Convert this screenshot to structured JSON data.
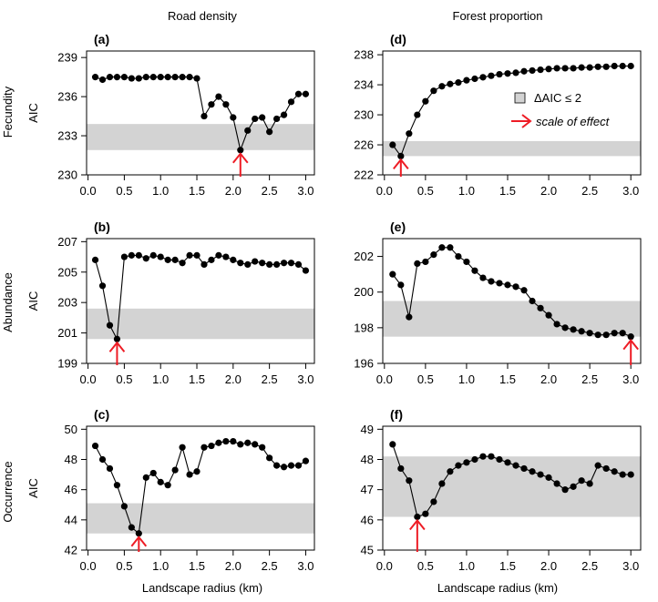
{
  "figure": {
    "column_titles": [
      "Road density",
      "Forest proportion"
    ],
    "row_labels": [
      "Fecundity",
      "Abundance",
      "Occurrence"
    ],
    "xlabel": "Landscape radius (km)"
  },
  "legend": {
    "band_label": "ΔAIC ≤ 2",
    "arrow_label": "scale of effect"
  },
  "colors": {
    "band": "#d3d3d3",
    "arrow": "#ee1c25",
    "points": "#000000"
  },
  "chart_data": [
    {
      "panel": "(a)",
      "type": "line",
      "ylabel": "AIC",
      "xlim": [
        0.1,
        3.0
      ],
      "ylim": [
        230,
        239.5
      ],
      "xticks": [
        "0.0",
        "0.5",
        "1.0",
        "1.5",
        "2.0",
        "2.5",
        "3.0"
      ],
      "yticks": [
        "230",
        "233",
        "236",
        "239"
      ],
      "x": [
        0.1,
        0.2,
        0.3,
        0.4,
        0.5,
        0.6,
        0.7,
        0.8,
        0.9,
        1.0,
        1.1,
        1.2,
        1.3,
        1.4,
        1.5,
        1.6,
        1.7,
        1.8,
        1.9,
        2.0,
        2.1,
        2.2,
        2.3,
        2.4,
        2.5,
        2.6,
        2.7,
        2.8,
        2.9,
        3.0
      ],
      "y": [
        237.5,
        237.3,
        237.5,
        237.5,
        237.5,
        237.4,
        237.4,
        237.5,
        237.5,
        237.5,
        237.5,
        237.5,
        237.5,
        237.5,
        237.4,
        234.5,
        235.4,
        236.0,
        235.4,
        234.4,
        231.9,
        233.4,
        234.3,
        234.4,
        233.3,
        234.3,
        234.6,
        235.6,
        236.2,
        236.2
      ],
      "band": [
        231.9,
        233.9
      ],
      "arrow_x": 2.1
    },
    {
      "panel": "(d)",
      "type": "line",
      "ylabel": "",
      "xlim": [
        0.1,
        3.0
      ],
      "ylim": [
        222,
        238.5
      ],
      "xticks": [
        "0.0",
        "0.5",
        "1.0",
        "1.5",
        "2.0",
        "2.5",
        "3.0"
      ],
      "yticks": [
        "222",
        "226",
        "230",
        "234",
        "238"
      ],
      "x": [
        0.1,
        0.2,
        0.3,
        0.4,
        0.5,
        0.6,
        0.7,
        0.8,
        0.9,
        1.0,
        1.1,
        1.2,
        1.3,
        1.4,
        1.5,
        1.6,
        1.7,
        1.8,
        1.9,
        2.0,
        2.1,
        2.2,
        2.3,
        2.4,
        2.5,
        2.6,
        2.7,
        2.8,
        2.9,
        3.0
      ],
      "y": [
        226.0,
        224.5,
        227.5,
        230.0,
        231.8,
        233.2,
        233.8,
        234.1,
        234.3,
        234.6,
        234.8,
        235.0,
        235.2,
        235.4,
        235.5,
        235.6,
        235.8,
        235.9,
        236.0,
        236.1,
        236.2,
        236.2,
        236.2,
        236.3,
        236.3,
        236.4,
        236.4,
        236.5,
        236.5,
        236.5
      ],
      "band": [
        224.5,
        226.5
      ],
      "arrow_x": 0.2,
      "legend": true
    },
    {
      "panel": "(b)",
      "type": "line",
      "ylabel": "AIC",
      "xlim": [
        0.1,
        3.0
      ],
      "ylim": [
        199,
        207.2
      ],
      "xticks": [
        "0.0",
        "0.5",
        "1.0",
        "1.5",
        "2.0",
        "2.5",
        "3.0"
      ],
      "yticks": [
        "199",
        "201",
        "203",
        "205",
        "207"
      ],
      "x": [
        0.1,
        0.2,
        0.3,
        0.4,
        0.5,
        0.6,
        0.7,
        0.8,
        0.9,
        1.0,
        1.1,
        1.2,
        1.3,
        1.4,
        1.5,
        1.6,
        1.7,
        1.8,
        1.9,
        2.0,
        2.1,
        2.2,
        2.3,
        2.4,
        2.5,
        2.6,
        2.7,
        2.8,
        2.9,
        3.0
      ],
      "y": [
        205.8,
        204.1,
        201.5,
        200.6,
        206.0,
        206.1,
        206.1,
        205.9,
        206.1,
        206.0,
        205.8,
        205.8,
        205.6,
        206.1,
        206.1,
        205.5,
        205.8,
        206.1,
        206.0,
        205.8,
        205.6,
        205.5,
        205.7,
        205.6,
        205.5,
        205.5,
        205.6,
        205.6,
        205.5,
        205.1
      ],
      "band": [
        200.6,
        202.6
      ],
      "arrow_x": 0.4
    },
    {
      "panel": "(e)",
      "type": "line",
      "ylabel": "",
      "xlim": [
        0.1,
        3.0
      ],
      "ylim": [
        196,
        203
      ],
      "xticks": [
        "0.0",
        "0.5",
        "1.0",
        "1.5",
        "2.0",
        "2.5",
        "3.0"
      ],
      "yticks": [
        "196",
        "198",
        "200",
        "202"
      ],
      "x": [
        0.1,
        0.2,
        0.3,
        0.4,
        0.5,
        0.6,
        0.7,
        0.8,
        0.9,
        1.0,
        1.1,
        1.2,
        1.3,
        1.4,
        1.5,
        1.6,
        1.7,
        1.8,
        1.9,
        2.0,
        2.1,
        2.2,
        2.3,
        2.4,
        2.5,
        2.6,
        2.7,
        2.8,
        2.9,
        3.0
      ],
      "y": [
        201.0,
        200.4,
        198.6,
        201.6,
        201.7,
        202.1,
        202.5,
        202.5,
        202.0,
        201.7,
        201.2,
        200.8,
        200.6,
        200.5,
        200.4,
        200.3,
        200.1,
        199.5,
        199.1,
        198.7,
        198.2,
        198.0,
        197.9,
        197.8,
        197.7,
        197.6,
        197.6,
        197.7,
        197.7,
        197.5
      ],
      "band": [
        197.5,
        199.5
      ],
      "arrow_x": 3.0
    },
    {
      "panel": "(c)",
      "type": "line",
      "ylabel": "AIC",
      "xlim": [
        0.1,
        3.0
      ],
      "ylim": [
        42,
        50.2
      ],
      "xticks": [
        "0.0",
        "0.5",
        "1.0",
        "1.5",
        "2.0",
        "2.5",
        "3.0"
      ],
      "yticks": [
        "42",
        "44",
        "46",
        "48",
        "50"
      ],
      "x": [
        0.1,
        0.2,
        0.3,
        0.4,
        0.5,
        0.6,
        0.7,
        0.8,
        0.9,
        1.0,
        1.1,
        1.2,
        1.3,
        1.4,
        1.5,
        1.6,
        1.7,
        1.8,
        1.9,
        2.0,
        2.1,
        2.2,
        2.3,
        2.4,
        2.5,
        2.6,
        2.7,
        2.8,
        2.9,
        3.0
      ],
      "y": [
        48.9,
        48.0,
        47.4,
        46.3,
        44.9,
        43.5,
        43.1,
        46.8,
        47.1,
        46.5,
        46.3,
        47.3,
        48.8,
        47.0,
        47.2,
        48.8,
        48.9,
        49.1,
        49.2,
        49.2,
        49.0,
        49.1,
        49.0,
        48.8,
        48.1,
        47.6,
        47.5,
        47.6,
        47.6,
        47.9
      ],
      "band": [
        43.1,
        45.1
      ],
      "arrow_x": 0.7
    },
    {
      "panel": "(f)",
      "type": "line",
      "ylabel": "",
      "xlim": [
        0.1,
        3.0
      ],
      "ylim": [
        45,
        49.1
      ],
      "xticks": [
        "0.0",
        "0.5",
        "1.0",
        "1.5",
        "2.0",
        "2.5",
        "3.0"
      ],
      "yticks": [
        "45",
        "46",
        "47",
        "48",
        "49"
      ],
      "x": [
        0.1,
        0.2,
        0.3,
        0.4,
        0.5,
        0.6,
        0.7,
        0.8,
        0.9,
        1.0,
        1.1,
        1.2,
        1.3,
        1.4,
        1.5,
        1.6,
        1.7,
        1.8,
        1.9,
        2.0,
        2.1,
        2.2,
        2.3,
        2.4,
        2.5,
        2.6,
        2.7,
        2.8,
        2.9,
        3.0
      ],
      "y": [
        48.5,
        47.7,
        47.3,
        46.1,
        46.2,
        46.6,
        47.2,
        47.6,
        47.8,
        47.9,
        48.0,
        48.1,
        48.1,
        48.0,
        47.9,
        47.8,
        47.7,
        47.6,
        47.5,
        47.4,
        47.2,
        47.0,
        47.1,
        47.3,
        47.2,
        47.8,
        47.7,
        47.6,
        47.5,
        47.5
      ],
      "band": [
        46.1,
        48.1
      ],
      "arrow_x": 0.4
    }
  ]
}
